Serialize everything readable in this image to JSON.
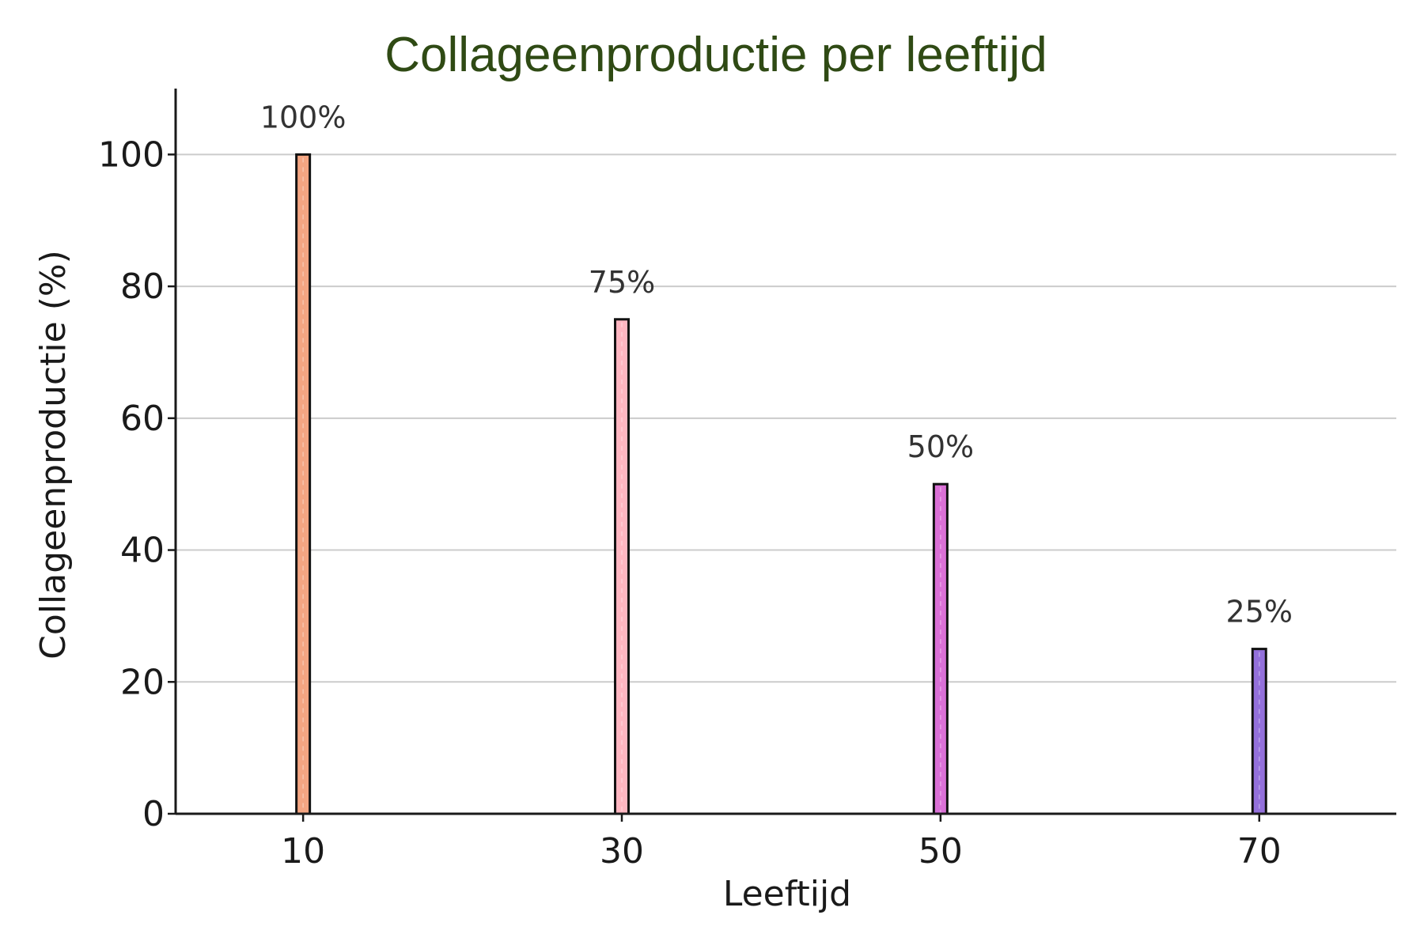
{
  "chart_data": {
    "type": "bar",
    "title": "Collageenproductie per leeftijd",
    "xlabel": "Leeftijd",
    "ylabel": "Collageenproductie (%)",
    "categories": [
      "10",
      "30",
      "50",
      "70"
    ],
    "values": [
      100,
      75,
      50,
      25
    ],
    "data_labels": [
      "100%",
      "75%",
      "50%",
      "25%"
    ],
    "bar_colors": [
      "#f4a582",
      "#ffb6c1",
      "#da70d6",
      "#9370db"
    ],
    "ylim": [
      0,
      110
    ],
    "yticks": [
      0,
      20,
      40,
      60,
      80,
      100
    ],
    "grid": "y",
    "colors": {
      "title": "#2f4a14",
      "axis": "#1a1a1a",
      "grid": "#cccccc",
      "bar_edge": "#111111",
      "data_label": "#333333"
    }
  }
}
